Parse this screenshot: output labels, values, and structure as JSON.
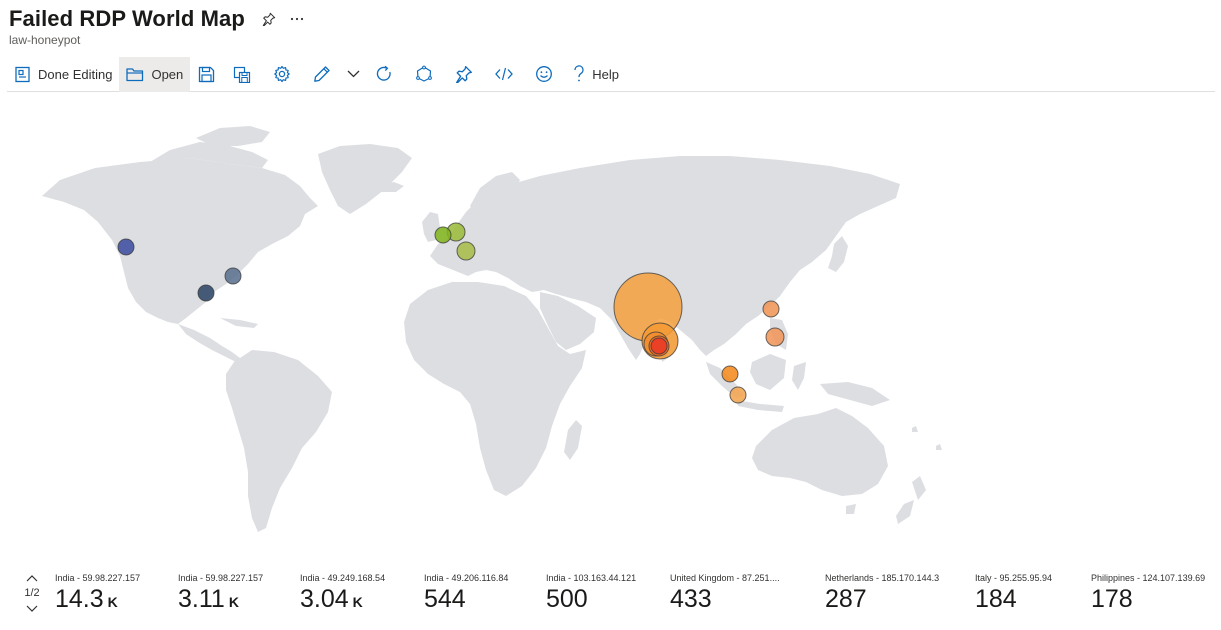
{
  "header": {
    "title": "Failed RDP World Map",
    "subtitle": "law-honeypot"
  },
  "toolbar": {
    "done_editing": "Done Editing",
    "open": "Open",
    "help": "Help",
    "icons": [
      "save-icon",
      "save-as-icon",
      "settings-icon",
      "edit-icon",
      "chevron-down-icon",
      "refresh-icon",
      "workspace-icon",
      "pin-icon",
      "code-icon",
      "smiley-icon",
      "help-icon"
    ]
  },
  "map": {
    "land_color": "#dcdee2",
    "bubbles": [
      {
        "label": "India - 59.98.227.157",
        "color": "#f5a03c"
      },
      {
        "label": "India - 59.98.227.157",
        "color": "#f39a33"
      },
      {
        "label": "India - 49.249.168.54",
        "color": "#f08c2e"
      },
      {
        "label": "India - 49.206.116.84",
        "color": "#ef6a2a"
      },
      {
        "label": "India - 103.163.44.121",
        "color": "#e83a24"
      },
      {
        "label": "United Kingdom",
        "color": "#7fb31c"
      },
      {
        "label": "Netherlands - 185.170.144.3",
        "color": "#9cbc3c"
      },
      {
        "label": "Italy - 95.255.95.94",
        "color": "#a9bd4a"
      },
      {
        "label": "Philippines - 124.107.139.69",
        "color": "#f0965a"
      },
      {
        "label": "China",
        "color": "#f09658"
      },
      {
        "label": "Malaysia",
        "color": "#f28a1e"
      },
      {
        "label": "Indonesia",
        "color": "#f2a550"
      },
      {
        "label": "United States - West",
        "color": "#3f4fa0"
      },
      {
        "label": "United States - East",
        "color": "#5b7290"
      },
      {
        "label": "United States - South",
        "color": "#2f4868"
      }
    ]
  },
  "pager": {
    "page": "1/2"
  },
  "tiles": [
    {
      "label": "India - 59.98.227.157",
      "value": "14.3",
      "unit": "K"
    },
    {
      "label": "India - 59.98.227.157",
      "value": "3.11",
      "unit": "K"
    },
    {
      "label": "India - 49.249.168.54",
      "value": "3.04",
      "unit": "K"
    },
    {
      "label": "India - 49.206.116.84",
      "value": "544",
      "unit": ""
    },
    {
      "label": "India - 103.163.44.121",
      "value": "500",
      "unit": ""
    },
    {
      "label": "United Kingdom - 87.251....",
      "value": "433",
      "unit": ""
    },
    {
      "label": "Netherlands - 185.170.144.3",
      "value": "287",
      "unit": ""
    },
    {
      "label": "Italy - 95.255.95.94",
      "value": "184",
      "unit": ""
    },
    {
      "label": "Philippines - 124.107.139.69",
      "value": "178",
      "unit": ""
    }
  ]
}
